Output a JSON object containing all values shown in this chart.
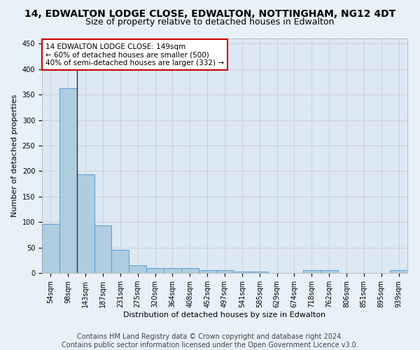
{
  "title": "14, EDWALTON LODGE CLOSE, EDWALTON, NOTTINGHAM, NG12 4DT",
  "subtitle": "Size of property relative to detached houses in Edwalton",
  "xlabel": "Distribution of detached houses by size in Edwalton",
  "ylabel": "Number of detached properties",
  "footer_line1": "Contains HM Land Registry data © Crown copyright and database right 2024.",
  "footer_line2": "Contains public sector information licensed under the Open Government Licence v3.0.",
  "categories": [
    "54sqm",
    "98sqm",
    "143sqm",
    "187sqm",
    "231sqm",
    "275sqm",
    "320sqm",
    "364sqm",
    "408sqm",
    "452sqm",
    "497sqm",
    "541sqm",
    "585sqm",
    "629sqm",
    "674sqm",
    "718sqm",
    "762sqm",
    "806sqm",
    "851sqm",
    "895sqm",
    "939sqm"
  ],
  "values": [
    96,
    362,
    194,
    94,
    46,
    15,
    10,
    10,
    10,
    6,
    5,
    3,
    3,
    0,
    0,
    6,
    5,
    0,
    0,
    0,
    5
  ],
  "bar_color": "#aecde0",
  "bar_edge_color": "#5b9bd5",
  "property_line_index": 2,
  "annotation_text_line1": "14 EDWALTON LODGE CLOSE: 149sqm",
  "annotation_text_line2": "← 60% of detached houses are smaller (500)",
  "annotation_text_line3": "40% of semi-detached houses are larger (332) →",
  "annotation_box_color": "#ffffff",
  "annotation_border_color": "#cc0000",
  "vline_color": "#333333",
  "ylim": [
    0,
    460
  ],
  "yticks": [
    0,
    50,
    100,
    150,
    200,
    250,
    300,
    350,
    400,
    450
  ],
  "grid_color": "#cccccc",
  "bg_color": "#e8f0f8",
  "plot_bg_color": "#dce8f4",
  "title_fontsize": 10,
  "subtitle_fontsize": 9,
  "axis_label_fontsize": 8,
  "tick_fontsize": 7,
  "annotation_fontsize": 7.5,
  "footer_fontsize": 7
}
